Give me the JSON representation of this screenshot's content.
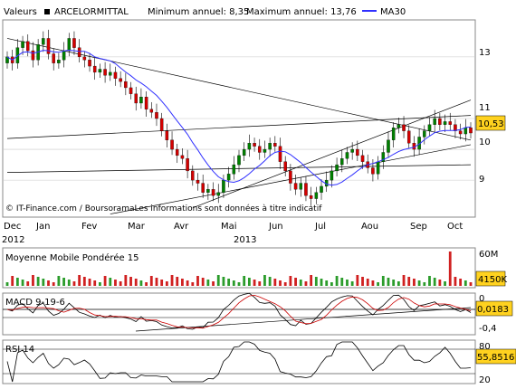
{
  "header": {
    "valeurs_label": "Valeurs",
    "stock_name": "ARCELORMITTAL",
    "min_text": "Minimum annuel: 8,35",
    "max_text": "Maximum annuel: 13,76",
    "ma_legend": "MA30"
  },
  "colors": {
    "candle_up": "#008000",
    "candle_down": "#d40000",
    "ma30": "#3030ff",
    "trendline": "#000000",
    "price_box": "#ffd21f",
    "grid": "#c8c8c8",
    "panel_border": "#888888",
    "volume_up": "#2b9c2b",
    "volume_down": "#d02020",
    "macd_line": "#000000",
    "signal_line": "#cc0000"
  },
  "chart_data": [
    {
      "type": "candlestick",
      "title": "ARCELORMITTAL",
      "x_tick_labels": [
        "Dec",
        "Jan",
        "Fev",
        "Mar",
        "Avr",
        "Mai",
        "Jun",
        "Jul",
        "Aou",
        "Sep",
        "Oct"
      ],
      "year_labels": [
        "2012",
        "2013"
      ],
      "y_tick_labels": [
        "9",
        "10",
        "11",
        "13"
      ],
      "ylim": [
        7.8,
        14.2
      ],
      "last_price_label": "10,53",
      "close": [
        13.0,
        12.8,
        13.3,
        13.5,
        13.2,
        12.9,
        13.4,
        13.6,
        13.1,
        12.8,
        12.9,
        13.2,
        13.6,
        13.3,
        13.0,
        12.9,
        12.7,
        12.5,
        12.6,
        12.4,
        12.5,
        12.3,
        12.2,
        12.0,
        11.8,
        11.5,
        11.7,
        11.3,
        11.2,
        11.0,
        10.6,
        10.3,
        10.0,
        9.8,
        9.7,
        9.3,
        9.0,
        8.9,
        8.6,
        8.7,
        8.5,
        8.6,
        9.0,
        9.2,
        9.5,
        9.8,
        10.0,
        10.2,
        10.1,
        9.9,
        10.0,
        10.2,
        10.1,
        9.6,
        9.3,
        8.9,
        8.7,
        8.9,
        8.5,
        8.4,
        8.6,
        8.8,
        9.0,
        9.3,
        9.5,
        9.7,
        9.9,
        10.0,
        9.8,
        9.6,
        9.4,
        9.2,
        9.6,
        9.9,
        10.3,
        10.7,
        10.8,
        10.6,
        10.2,
        10.0,
        10.4,
        10.6,
        10.8,
        11.0,
        10.8,
        10.9,
        10.8,
        10.6,
        10.5,
        10.7,
        10.53
      ],
      "ma30_label": "MA30",
      "ma30_note": "30-period moving average drawn in blue"
    },
    {
      "type": "bar",
      "title": "Moyenne Mobile Pondérée 15",
      "y_tick_labels": [
        "60M"
      ],
      "last_value_label": "4150K",
      "spike_label": "60M"
    },
    {
      "type": "line",
      "title": "MACD 9-19-6",
      "y_tick_labels": [
        "0",
        "-0,4"
      ],
      "last_value_label": "0,0183"
    },
    {
      "type": "line",
      "title": "RSI 14",
      "y_tick_labels": [
        "80",
        "20"
      ],
      "last_value_label": "55,8516"
    }
  ],
  "credit": "© IT-Finance.com / BoursoramaLes informations sont données à titre indicatif"
}
